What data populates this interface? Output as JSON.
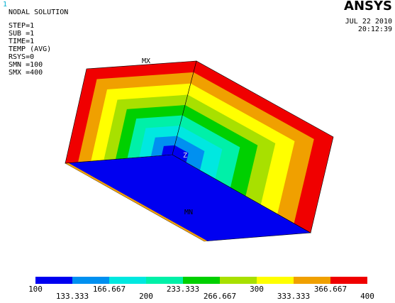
{
  "window_label": "1",
  "header": {
    "title": "NODAL SOLUTION",
    "info": [
      "STEP=1",
      "SUB =1",
      "TIME=1",
      "TEMP     (AVG)",
      "RSYS=0",
      "SMN =100",
      "SMX =400"
    ],
    "logo": "ANSYS",
    "date": "JUL 22 2010",
    "time": "20:12:39"
  },
  "model": {
    "max_label": "MX",
    "min_label": "MN",
    "axis_label": "Z"
  },
  "legend": {
    "colors": [
      "#0000f0",
      "#0090f0",
      "#00e8e0",
      "#00f0a8",
      "#00d000",
      "#a8e000",
      "#ffff00",
      "#f0a000",
      "#f00000"
    ],
    "labels": [
      100,
      133.333,
      166.667,
      200,
      233.333,
      266.667,
      300,
      333.333,
      366.667,
      400
    ]
  }
}
